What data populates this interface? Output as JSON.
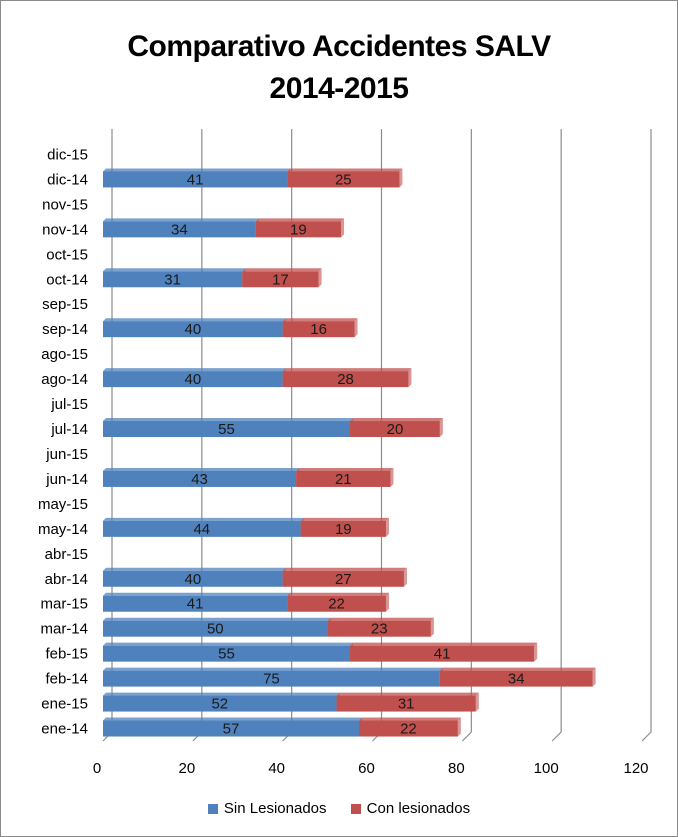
{
  "chart_data": {
    "type": "bar",
    "orientation": "horizontal",
    "stacked": true,
    "title_lines": [
      "Comparativo Accidentes SALV",
      "2014-2015"
    ],
    "categories": [
      "ene-14",
      "ene-15",
      "feb-14",
      "feb-15",
      "mar-14",
      "mar-15",
      "abr-14",
      "abr-15",
      "may-14",
      "may-15",
      "jun-14",
      "jun-15",
      "jul-14",
      "jul-15",
      "ago-14",
      "ago-15",
      "sep-14",
      "sep-15",
      "oct-14",
      "oct-15",
      "nov-14",
      "nov-15",
      "dic-14",
      "dic-15"
    ],
    "series": [
      {
        "name": "Sin Lesionados",
        "color": "#4F81BD",
        "values": [
          57,
          52,
          75,
          55,
          50,
          41,
          40,
          null,
          44,
          null,
          43,
          null,
          55,
          null,
          40,
          null,
          40,
          null,
          31,
          null,
          34,
          null,
          41,
          null
        ]
      },
      {
        "name": "Con lesionados",
        "color": "#C0504D",
        "values": [
          22,
          31,
          34,
          41,
          23,
          22,
          27,
          null,
          19,
          null,
          21,
          null,
          20,
          null,
          28,
          null,
          16,
          null,
          17,
          null,
          19,
          null,
          25,
          null
        ]
      }
    ],
    "xlim": [
      0,
      120
    ],
    "xticks": [
      0,
      20,
      40,
      60,
      80,
      100,
      120
    ],
    "grid": true,
    "legend_position": "bottom"
  }
}
